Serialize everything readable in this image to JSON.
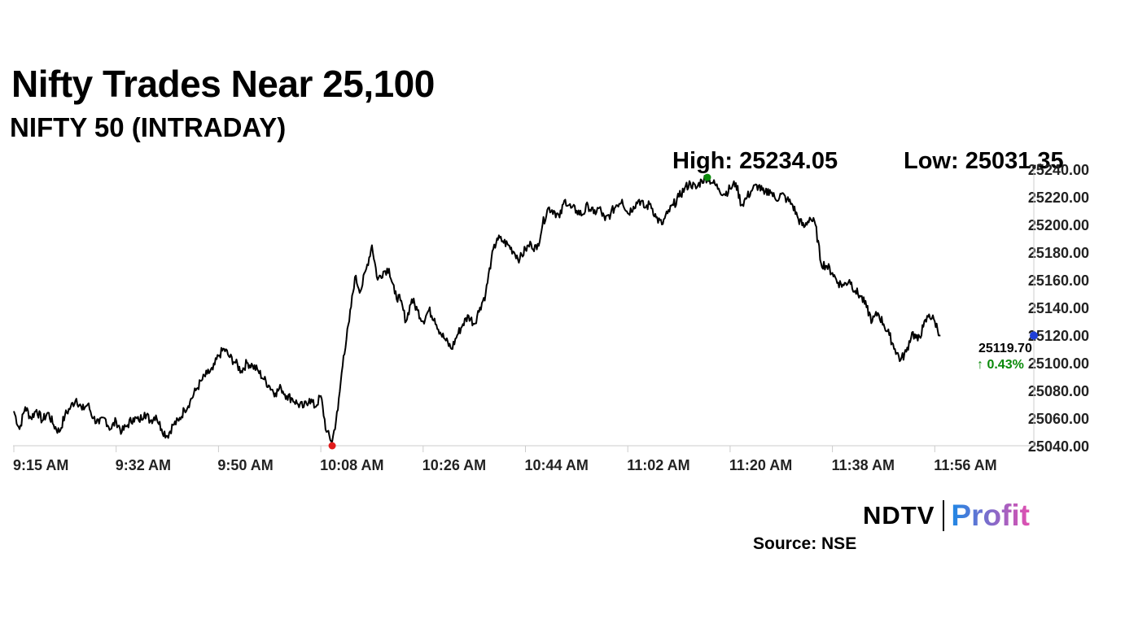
{
  "header": {
    "title": "Nifty Trades Near 25,100",
    "subtitle": "NIFTY 50 (INTRADAY)"
  },
  "stats": {
    "high_text": "High: 25234.05",
    "low_text": "Low: 25031.35"
  },
  "last": {
    "value_text": "25119.70",
    "change_text": "↑ 0.43%"
  },
  "branding": {
    "logo_primary": "NDTV",
    "logo_secondary": "Profit",
    "source": "Source: NSE"
  },
  "colors": {
    "line": "#000000",
    "high_marker": "#0a8a0a",
    "low_marker": "#e01b1b",
    "last_marker": "#1f3fd8",
    "change_up": "#0a8a0a",
    "axis": "#cccccc",
    "profit_start": "#1e88e5",
    "profit_end": "#e24fb0"
  },
  "chart_data": {
    "type": "line",
    "title": "NIFTY 50 (INTRADAY)",
    "xlabel": "",
    "ylabel": "",
    "ylim": [
      25040,
      25240
    ],
    "yticks": [
      "25040.00",
      "25060.00",
      "25080.00",
      "25100.00",
      "25120.00",
      "25140.00",
      "25160.00",
      "25180.00",
      "25200.00",
      "25220.00",
      "25240.00"
    ],
    "xticks": [
      "9:15 AM",
      "9:32 AM",
      "9:50 AM",
      "10:08 AM",
      "10:26 AM",
      "10:44 AM",
      "11:02 AM",
      "11:20 AM",
      "11:38 AM",
      "11:56 AM"
    ],
    "x_start": "9:15 AM",
    "grid": false,
    "series": [
      {
        "points": [
          [
            "9:15",
            25065
          ],
          [
            "9:16",
            25052
          ],
          [
            "9:17",
            25068
          ],
          [
            "9:18",
            25060
          ],
          [
            "9:19",
            25066
          ],
          [
            "9:20",
            25058
          ],
          [
            "9:21",
            25064
          ],
          [
            "9:22",
            25055
          ],
          [
            "9:23",
            25050
          ],
          [
            "9:24",
            25062
          ],
          [
            "9:25",
            25068
          ],
          [
            "9:26",
            25074
          ],
          [
            "9:27",
            25066
          ],
          [
            "9:28",
            25070
          ],
          [
            "9:29",
            25060
          ],
          [
            "9:30",
            25056
          ],
          [
            "9:31",
            25060
          ],
          [
            "9:32",
            25052
          ],
          [
            "9:33",
            25058
          ],
          [
            "9:34",
            25050
          ],
          [
            "9:35",
            25055
          ],
          [
            "9:36",
            25060
          ],
          [
            "9:37",
            25058
          ],
          [
            "9:38",
            25064
          ],
          [
            "9:39",
            25058
          ],
          [
            "9:40",
            25062
          ],
          [
            "9:41",
            25052
          ],
          [
            "9:42",
            25047
          ],
          [
            "9:43",
            25055
          ],
          [
            "9:44",
            25058
          ],
          [
            "9:45",
            25066
          ],
          [
            "9:46",
            25072
          ],
          [
            "9:47",
            25080
          ],
          [
            "9:48",
            25087
          ],
          [
            "9:49",
            25092
          ],
          [
            "9:50",
            25095
          ],
          [
            "9:51",
            25105
          ],
          [
            "9:52",
            25110
          ],
          [
            "9:53",
            25104
          ],
          [
            "9:54",
            25100
          ],
          [
            "9:55",
            25094
          ],
          [
            "9:56",
            25100
          ],
          [
            "9:57",
            25098
          ],
          [
            "9:58",
            25094
          ],
          [
            "9:59",
            25088
          ],
          [
            "10:00",
            25083
          ],
          [
            "10:01",
            25078
          ],
          [
            "10:02",
            25082
          ],
          [
            "10:03",
            25076
          ],
          [
            "10:04",
            25074
          ],
          [
            "10:05",
            25070
          ],
          [
            "10:06",
            25068
          ],
          [
            "10:07",
            25074
          ],
          [
            "10:08",
            25068
          ],
          [
            "10:09",
            25076
          ],
          [
            "10:10",
            25050
          ],
          [
            "10:11",
            25043
          ],
          [
            "10:12",
            25066
          ],
          [
            "10:13",
            25105
          ],
          [
            "10:14",
            25130
          ],
          [
            "10:15",
            25162
          ],
          [
            "10:16",
            25152
          ],
          [
            "10:17",
            25168
          ],
          [
            "10:18",
            25185
          ],
          [
            "10:19",
            25160
          ],
          [
            "10:20",
            25166
          ],
          [
            "10:21",
            25168
          ],
          [
            "10:22",
            25150
          ],
          [
            "10:23",
            25145
          ],
          [
            "10:24",
            25130
          ],
          [
            "10:25",
            25146
          ],
          [
            "10:26",
            25138
          ],
          [
            "10:27",
            25130
          ],
          [
            "10:28",
            25138
          ],
          [
            "10:29",
            25132
          ],
          [
            "10:30",
            25122
          ],
          [
            "10:31",
            25116
          ],
          [
            "10:32",
            25110
          ],
          [
            "10:33",
            25120
          ],
          [
            "10:34",
            25128
          ],
          [
            "10:35",
            25134
          ],
          [
            "10:36",
            25128
          ],
          [
            "10:37",
            25140
          ],
          [
            "10:38",
            25150
          ],
          [
            "10:39",
            25175
          ],
          [
            "10:40",
            25190
          ],
          [
            "10:41",
            25188
          ],
          [
            "10:42",
            25185
          ],
          [
            "10:43",
            25180
          ],
          [
            "10:44",
            25175
          ],
          [
            "10:45",
            25182
          ],
          [
            "10:46",
            25186
          ],
          [
            "10:47",
            25182
          ],
          [
            "10:48",
            25200
          ],
          [
            "10:49",
            25212
          ],
          [
            "10:50",
            25210
          ],
          [
            "10:51",
            25205
          ],
          [
            "10:52",
            25218
          ],
          [
            "10:53",
            25212
          ],
          [
            "10:54",
            25210
          ],
          [
            "10:55",
            25207
          ],
          [
            "10:56",
            25214
          ],
          [
            "10:57",
            25208
          ],
          [
            "10:58",
            25212
          ],
          [
            "10:59",
            25203
          ],
          [
            "11:00",
            25208
          ],
          [
            "11:01",
            25214
          ],
          [
            "11:02",
            25218
          ],
          [
            "11:03",
            25208
          ],
          [
            "11:04",
            25213
          ],
          [
            "11:05",
            25218
          ],
          [
            "11:06",
            25212
          ],
          [
            "11:07",
            25215
          ],
          [
            "11:08",
            25205
          ],
          [
            "11:09",
            25200
          ],
          [
            "11:10",
            25208
          ],
          [
            "11:11",
            25214
          ],
          [
            "11:12",
            25220
          ],
          [
            "11:13",
            25226
          ],
          [
            "11:14",
            25230
          ],
          [
            "11:15",
            25226
          ],
          [
            "11:16",
            25232
          ],
          [
            "11:17",
            25234.05
          ],
          [
            "11:18",
            25230
          ],
          [
            "11:19",
            25226
          ],
          [
            "11:20",
            25222
          ],
          [
            "11:21",
            25226
          ],
          [
            "11:22",
            25230
          ],
          [
            "11:23",
            25214
          ],
          [
            "11:24",
            25220
          ],
          [
            "11:25",
            25226
          ],
          [
            "11:26",
            25228
          ],
          [
            "11:27",
            25222
          ],
          [
            "11:28",
            25225
          ],
          [
            "11:29",
            25218
          ],
          [
            "11:30",
            25222
          ],
          [
            "11:31",
            25218
          ],
          [
            "11:32",
            25214
          ],
          [
            "11:33",
            25204
          ],
          [
            "11:34",
            25198
          ],
          [
            "11:35",
            25205
          ],
          [
            "11:36",
            25200
          ],
          [
            "11:37",
            25172
          ],
          [
            "11:38",
            25170
          ],
          [
            "11:39",
            25165
          ],
          [
            "11:40",
            25158
          ],
          [
            "11:41",
            25156
          ],
          [
            "11:42",
            25160
          ],
          [
            "11:43",
            25152
          ],
          [
            "11:44",
            25148
          ],
          [
            "11:45",
            25140
          ],
          [
            "11:46",
            25130
          ],
          [
            "11:47",
            25136
          ],
          [
            "11:48",
            25128
          ],
          [
            "11:49",
            25120
          ],
          [
            "11:50",
            25110
          ],
          [
            "11:51",
            25102
          ],
          [
            "11:52",
            25108
          ],
          [
            "11:53",
            25122
          ],
          [
            "11:54",
            25116
          ],
          [
            "11:55",
            25126
          ],
          [
            "11:56",
            25135
          ],
          [
            "11:57",
            25130
          ],
          [
            "11:58",
            25119.7
          ]
        ]
      }
    ],
    "high": {
      "time": "11:17",
      "value": 25234.05
    },
    "low": {
      "time": "10:11",
      "value": 25031.35
    },
    "last": {
      "time": "11:58",
      "value": 25119.7
    }
  }
}
